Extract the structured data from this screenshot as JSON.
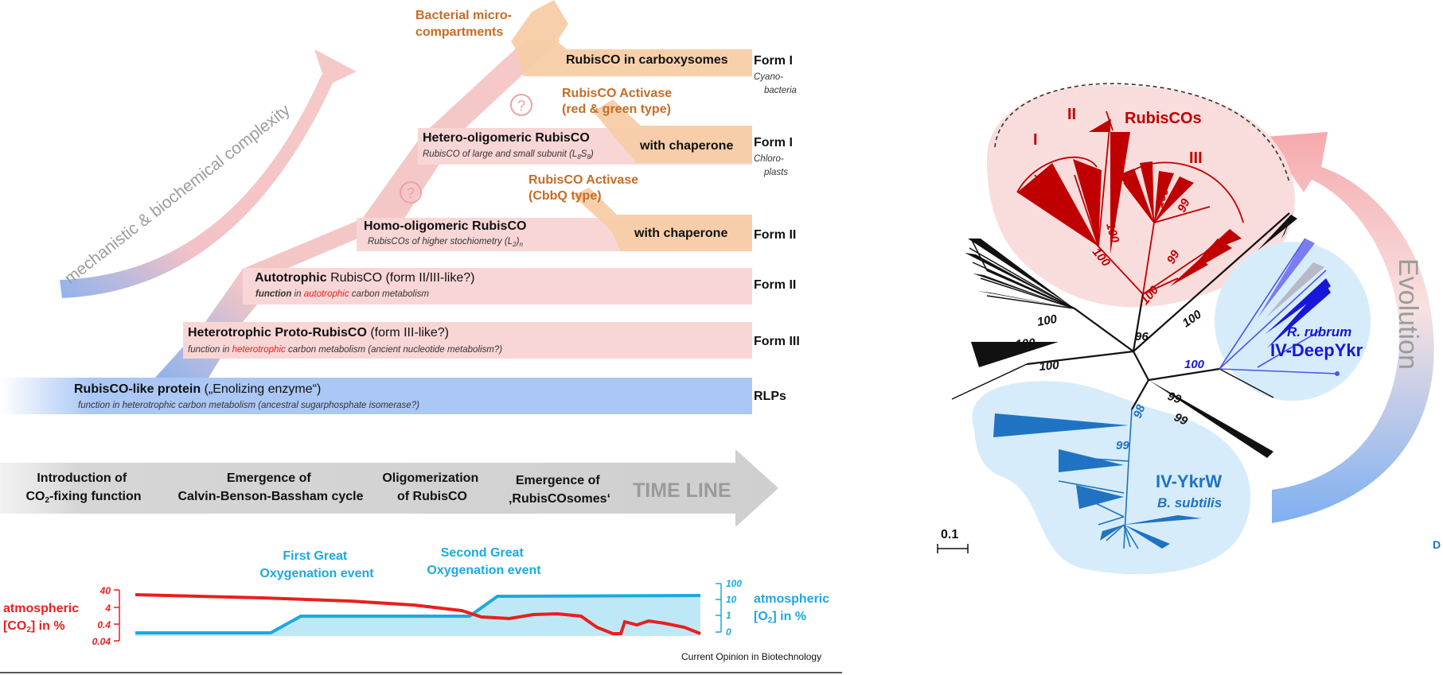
{
  "left": {
    "diagonal_label": "mechanistic & biochemical complexity",
    "top_label": [
      "Bacterial micro-",
      "compartments"
    ],
    "bands": {
      "carboxysome": {
        "label": "RubisCO in carboxysomes"
      },
      "hetero": {
        "title": "Hetero-oligomeric RubisCO",
        "subtitle": "RubisCO of large and small subunit (L",
        "sub_8a": "8",
        "sub_mid": "S",
        "sub_8b": "8",
        "sub_end": ")",
        "chaperone": "with chaperone"
      },
      "homo": {
        "title": "Homo-oligomeric RubisCO",
        "subtitle": "RubisCOs of higher stochiometry (L",
        "sub_2": "2",
        "sub_end": ")",
        "sub_n": "n",
        "chaperone": "with chaperone"
      },
      "autotrophic": {
        "title_bold": "Autotrophic",
        "title_rest": " RubisCO",
        "title_tail": " (form II/III-like?)",
        "sub_a": "function",
        "sub_b": " in ",
        "sub_c": "autotrophic",
        "sub_d": " carbon metabolism"
      },
      "heterotrophic": {
        "title_bold": "Heterotrophic Proto-RubisCO",
        "title_tail": " (form III-like?)",
        "sub_a": "function in ",
        "sub_b": "heterotrophic",
        "sub_c": " carbon metabolism (ancient nucleotide metabolism?)"
      },
      "rlp": {
        "title_bold": "RubisCO-like protein",
        "title_tail": " („Enolizing enzyme“)",
        "subtitle": "function in heterotrophic carbon metabolism (ancestral sugarphosphate isomerase?)"
      }
    },
    "activase1": [
      "RubisCO Activase",
      "(red & green type)"
    ],
    "activase2": [
      "RubisCO Activase",
      "(CbbQ type)"
    ],
    "question_mark": "?",
    "forms": {
      "f1_cyano": "Form I",
      "f1_cyano_sub": [
        "Cyano-",
        "bacteria"
      ],
      "f1_chloro": "Form I",
      "f1_chloro_sub": [
        "Chloro-",
        "plasts"
      ],
      "f2a": "Form II",
      "f2b": "Form II",
      "f3": "Form III",
      "rlp": "RLPs"
    },
    "timeline": {
      "label": "TIME LINE",
      "stages": [
        {
          "l1": "Introduction of",
          "l2a": "CO",
          "l2sub": "2",
          "l2b": "-fixing function"
        },
        {
          "l1": "Emergence of",
          "l2": "Calvin-Benson-Bassham cycle"
        },
        {
          "l1": "Oligomerization",
          "l2": "of RubisCO"
        },
        {
          "l1": "Emergence of",
          "l2": "‚RubisCOsomes‘"
        }
      ]
    },
    "oxygenation": {
      "first": [
        "First Great",
        "Oxygenation event"
      ],
      "second": [
        "Second Great",
        "Oxygenation event"
      ]
    },
    "co2_axis": {
      "label1": "atmospheric",
      "label2a": "[CO",
      "label2sub": "2",
      "label2b": "] in %",
      "ticks": [
        "40",
        "4",
        "0.4",
        "0.04"
      ],
      "color": "#e8201e"
    },
    "o2_axis": {
      "label1": "atmospheric",
      "label2a": "[O",
      "label2sub": "2",
      "label2b": "] in %",
      "ticks": [
        "100",
        "10",
        "1",
        "0"
      ],
      "color": "#1ba9e1"
    },
    "credit": "Current Opinion in Biotechnology"
  },
  "right": {
    "rubiscos": "RubisCOs",
    "clades": {
      "I": "I",
      "II": "II",
      "III": "III"
    },
    "bootstraps": {
      "red": [
        "100",
        "100",
        "100",
        "99",
        "99",
        "100"
      ],
      "black": [
        "100",
        "100",
        "100",
        "96",
        "100",
        "99",
        "99"
      ],
      "blue": [
        "98",
        "99",
        "100"
      ]
    },
    "deepykr": {
      "species": "R. rubrum",
      "name": "IV-DeepYkr"
    },
    "ykrw": {
      "name": "IV-YkrW",
      "species": "B. subtilis"
    },
    "scale": "0.1",
    "evolution": "Evolution",
    "cut_letter": "D"
  },
  "colors": {
    "pink_band": "#f9d6d6",
    "blue_band": "#abc7f5",
    "orange_band": "#f7cea6",
    "orange_text": "#c86b25",
    "rubisco_red": "#c00000",
    "ykrw_blue": "#1f73c2",
    "deep_blue": "#1717d8",
    "grey_arrow": "#d2d2d2"
  }
}
